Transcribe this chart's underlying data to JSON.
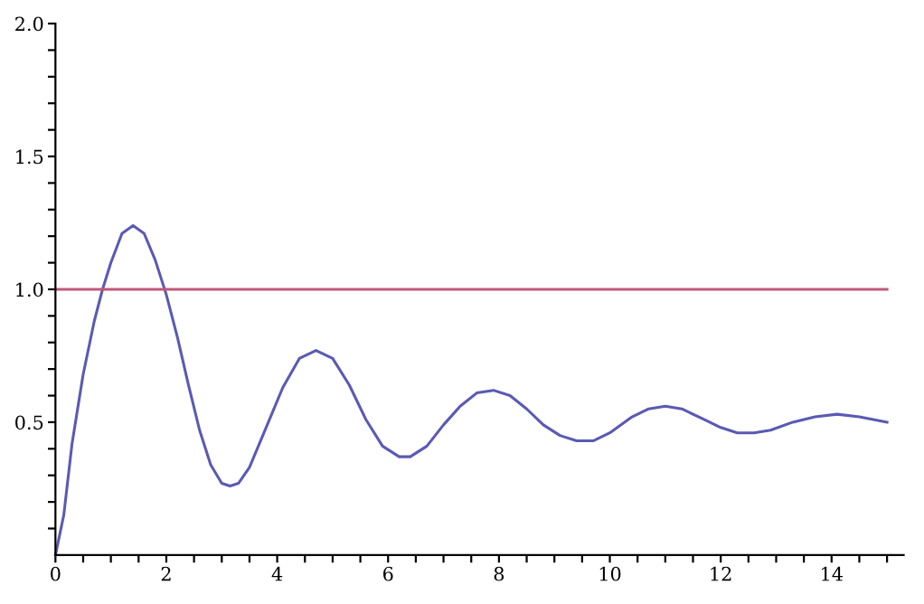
{
  "chart_data": {
    "type": "line",
    "xlim": [
      0,
      15.3
    ],
    "ylim": [
      0,
      2.0
    ],
    "xticks": [
      0,
      {
        "value": 0.5,
        "label": null
      },
      {
        "value": 1,
        "label": null
      },
      {
        "value": 1.5,
        "label": null
      },
      2,
      {
        "value": 2.5,
        "label": null
      },
      {
        "value": 3,
        "label": null
      },
      {
        "value": 3.5,
        "label": null
      },
      4,
      {
        "value": 4.5,
        "label": null
      },
      {
        "value": 5,
        "label": null
      },
      {
        "value": 5.5,
        "label": null
      },
      6,
      {
        "value": 6.5,
        "label": null
      },
      {
        "value": 7,
        "label": null
      },
      {
        "value": 7.5,
        "label": null
      },
      8,
      {
        "value": 8.5,
        "label": null
      },
      {
        "value": 9,
        "label": null
      },
      {
        "value": 9.5,
        "label": null
      },
      10,
      {
        "value": 10.5,
        "label": null
      },
      {
        "value": 11,
        "label": null
      },
      {
        "value": 11.5,
        "label": null
      },
      12,
      {
        "value": 12.5,
        "label": null
      },
      {
        "value": 13,
        "label": null
      },
      {
        "value": 13.5,
        "label": null
      },
      14,
      {
        "value": 14.5,
        "label": null
      },
      {
        "value": 15,
        "label": null
      }
    ],
    "yticks": [
      {
        "value": 0.1,
        "label": null
      },
      {
        "value": 0.2,
        "label": null
      },
      {
        "value": 0.3,
        "label": null
      },
      {
        "value": 0.4,
        "label": null
      },
      0.5,
      {
        "value": 0.6,
        "label": null
      },
      {
        "value": 0.7,
        "label": null
      },
      {
        "value": 0.8,
        "label": null
      },
      {
        "value": 0.9,
        "label": null
      },
      {
        "value": 1,
        "label": "1.0"
      },
      {
        "value": 1.1,
        "label": null
      },
      {
        "value": 1.2,
        "label": null
      },
      {
        "value": 1.3,
        "label": null
      },
      {
        "value": 1.4,
        "label": null
      },
      1.5,
      {
        "value": 1.6,
        "label": null
      },
      {
        "value": 1.7,
        "label": null
      },
      {
        "value": 1.8,
        "label": null
      },
      {
        "value": 1.9,
        "label": null
      },
      {
        "value": 2,
        "label": "2.0"
      }
    ],
    "grid": false,
    "marker": "none",
    "line_style": "solid",
    "series": [
      {
        "color": "#5a5ab4",
        "x": [
          0,
          0.15,
          0.3,
          0.5,
          0.7,
          0.85,
          1.0,
          1.2,
          1.4,
          1.6,
          1.8,
          2.0,
          2.2,
          2.4,
          2.6,
          2.8,
          3.0,
          3.15,
          3.3,
          3.5,
          3.8,
          4.1,
          4.4,
          4.7,
          5.0,
          5.3,
          5.6,
          5.9,
          6.2,
          6.4,
          6.7,
          7.0,
          7.3,
          7.6,
          7.9,
          8.2,
          8.5,
          8.8,
          9.1,
          9.4,
          9.7,
          10.0,
          10.4,
          10.7,
          11.0,
          11.3,
          11.7,
          12.0,
          12.3,
          12.6,
          12.9,
          13.3,
          13.7,
          14.1,
          14.5,
          15.0
        ],
        "values": [
          0,
          0.15,
          0.42,
          0.68,
          0.88,
          1.0,
          1.1,
          1.21,
          1.24,
          1.21,
          1.11,
          0.98,
          0.82,
          0.64,
          0.47,
          0.34,
          0.27,
          0.26,
          0.27,
          0.33,
          0.48,
          0.63,
          0.74,
          0.77,
          0.74,
          0.64,
          0.51,
          0.41,
          0.37,
          0.37,
          0.41,
          0.49,
          0.56,
          0.61,
          0.62,
          0.6,
          0.55,
          0.49,
          0.45,
          0.43,
          0.43,
          0.46,
          0.52,
          0.55,
          0.56,
          0.55,
          0.51,
          0.48,
          0.46,
          0.46,
          0.47,
          0.5,
          0.52,
          0.53,
          0.52,
          0.5
        ]
      },
      {
        "color": "#c0587a",
        "x": [
          0,
          15
        ],
        "values": [
          1,
          1
        ]
      }
    ]
  }
}
